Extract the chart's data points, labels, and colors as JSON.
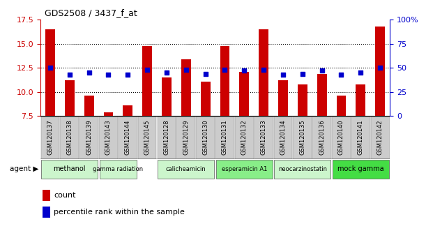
{
  "title": "GDS2508 / 3437_f_at",
  "samples": [
    "GSM120137",
    "GSM120138",
    "GSM120139",
    "GSM120143",
    "GSM120144",
    "GSM120145",
    "GSM120128",
    "GSM120129",
    "GSM120130",
    "GSM120131",
    "GSM120132",
    "GSM120133",
    "GSM120134",
    "GSM120135",
    "GSM120136",
    "GSM120140",
    "GSM120141",
    "GSM120142"
  ],
  "counts": [
    16.5,
    11.2,
    9.6,
    7.9,
    8.6,
    14.8,
    11.5,
    13.4,
    11.1,
    14.8,
    12.1,
    16.5,
    11.2,
    10.8,
    11.9,
    9.6,
    10.8,
    16.8
  ],
  "percentiles": [
    50,
    43,
    45,
    43,
    43,
    48,
    45,
    48,
    44,
    48,
    47,
    48,
    43,
    44,
    47,
    43,
    45,
    50
  ],
  "ylim_left": [
    7.5,
    17.5
  ],
  "ylim_right": [
    0,
    100
  ],
  "yticks_left": [
    7.5,
    10.0,
    12.5,
    15.0,
    17.5
  ],
  "yticks_right": [
    0,
    25,
    50,
    75,
    100
  ],
  "bar_color": "#cc0000",
  "dot_color": "#0000cc",
  "agents": [
    {
      "label": "methanol",
      "indices": [
        0,
        1,
        2
      ],
      "color": "#ccf5cc"
    },
    {
      "label": "gamma radiation",
      "indices": [
        3,
        4
      ],
      "color": "#ccf5cc"
    },
    {
      "label": "calicheamicin",
      "indices": [
        6,
        7,
        8
      ],
      "color": "#ccf5cc"
    },
    {
      "label": "esperamicin A1",
      "indices": [
        9,
        10,
        11
      ],
      "color": "#88ee88"
    },
    {
      "label": "neocarzinostatin",
      "indices": [
        12,
        13,
        14
      ],
      "color": "#ccf5cc"
    },
    {
      "label": "mock gamma",
      "indices": [
        15,
        16,
        17
      ],
      "color": "#44dd44"
    }
  ],
  "gap_indices": [
    5
  ],
  "left_axis_color": "#cc0000",
  "right_axis_color": "#0000cc",
  "grid_yticks": [
    10.0,
    12.5,
    15.0
  ],
  "bar_width": 0.5,
  "dot_size": 25,
  "xtick_bg": "#cccccc",
  "fig_bg": "#ffffff"
}
